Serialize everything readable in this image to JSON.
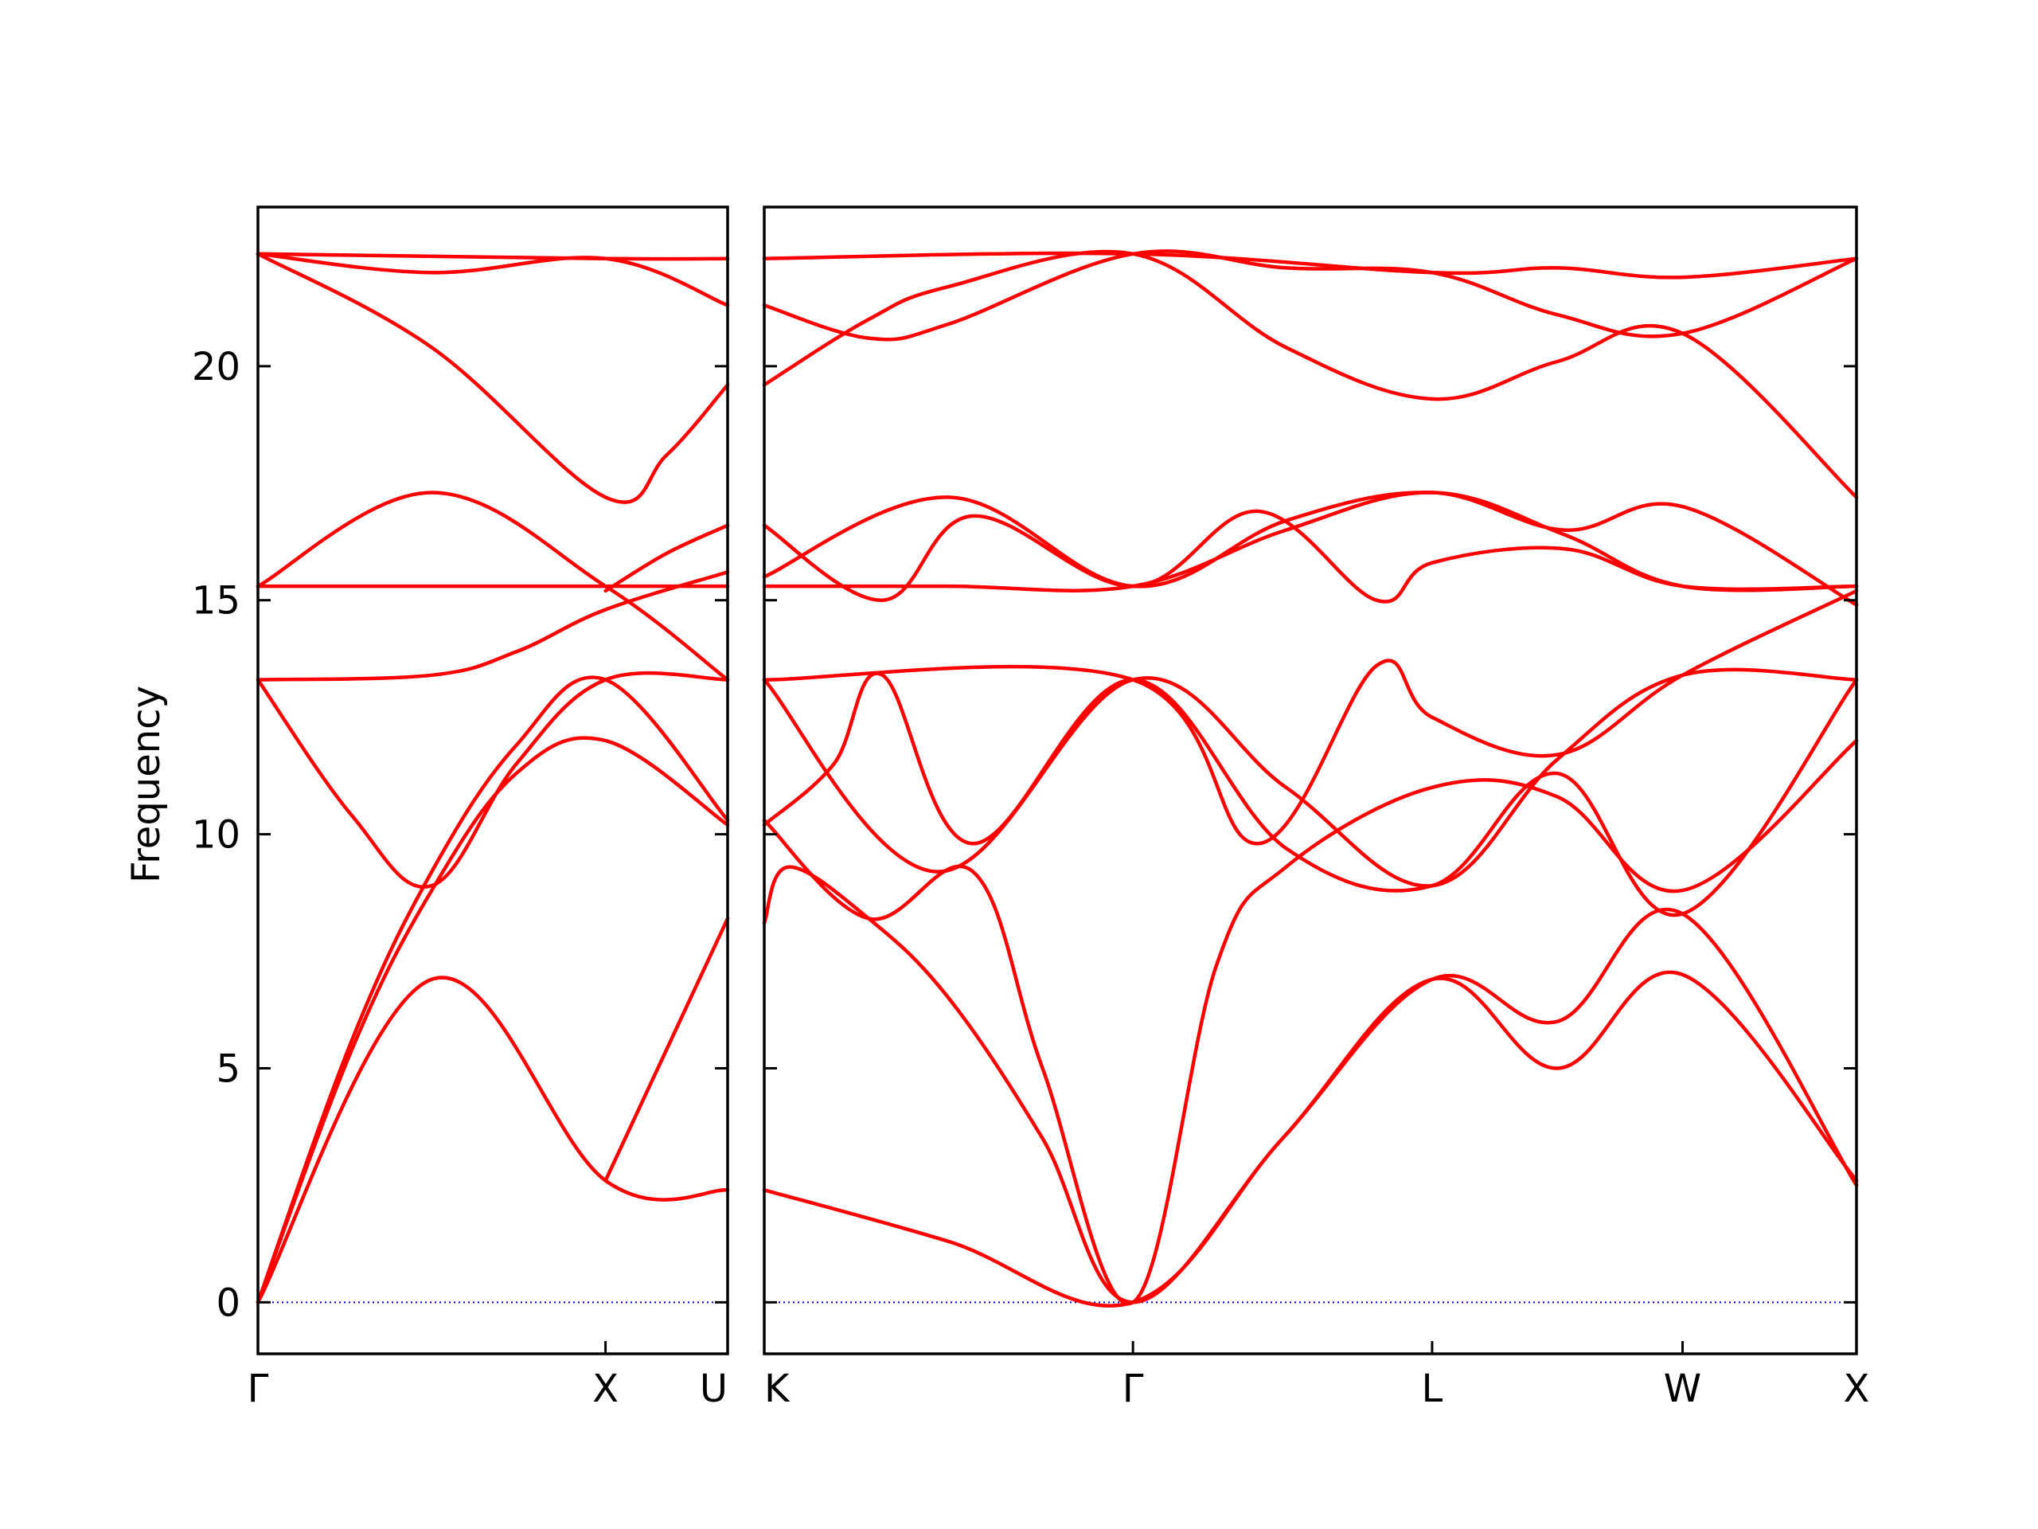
{
  "chart_data": {
    "type": "line",
    "ylabel": "Frequency",
    "ylim": [
      -1.1,
      23.4
    ],
    "yticks": [
      0,
      5,
      10,
      15,
      20
    ],
    "grid": false,
    "colors": {
      "bands": "#ff0000",
      "zero_line": "#0000cc",
      "axes": "#000000"
    },
    "panels": [
      {
        "xticks": [
          {
            "x": 0,
            "label": "Γ"
          },
          {
            "x": 0.74,
            "label": "X"
          },
          {
            "x": 1.0,
            "label": "U"
          }
        ],
        "xlim": [
          0,
          1.0
        ],
        "bands": [
          {
            "x": [
              0,
              0.37,
              0.74,
              1.0
            ],
            "y": [
              0,
              6.9,
              2.6,
              2.4
            ]
          },
          {
            "x": [
              0,
              0.2,
              0.37,
              0.55,
              0.74,
              1.0
            ],
            "y": [
              0,
              5.4,
              8.8,
              11.3,
              12.0,
              10.2
            ]
          },
          {
            "x": [
              0,
              0.2,
              0.37,
              0.55,
              0.74,
              1.0
            ],
            "y": [
              0,
              5.6,
              9.2,
              11.9,
              13.3,
              10.3
            ]
          },
          {
            "x": [
              0,
              0.2,
              0.37,
              0.55,
              0.74,
              1.0
            ],
            "y": [
              13.3,
              10.4,
              8.9,
              11.5,
              13.3,
              13.3
            ]
          },
          {
            "x": [
              0,
              0.37,
              0.74,
              1.0
            ],
            "y": [
              15.3,
              17.3,
              15.3,
              13.3
            ]
          },
          {
            "x": [
              0,
              1.0
            ],
            "y": [
              15.3,
              15.3
            ]
          },
          {
            "x": [
              0,
              0.37,
              0.55,
              0.74,
              1.0
            ],
            "y": [
              13.3,
              13.4,
              13.9,
              14.8,
              15.6
            ]
          },
          {
            "x": [
              0,
              0.37,
              0.74,
              0.87,
              1.0
            ],
            "y": [
              22.4,
              20.4,
              17.2,
              18.1,
              19.6
            ]
          },
          {
            "x": [
              0,
              0.37,
              0.74,
              1.0
            ],
            "y": [
              22.4,
              22.0,
              22.3,
              21.3
            ]
          },
          {
            "x": [
              0,
              0.74,
              1.0
            ],
            "y": [
              22.4,
              22.3,
              22.3
            ]
          },
          {
            "x": [
              0.74,
              0.87,
              1.0
            ],
            "y": [
              2.6,
              5.4,
              8.2
            ]
          },
          {
            "x": [
              0.74,
              0.87,
              1.0
            ],
            "y": [
              15.2,
              16.0,
              16.6
            ]
          }
        ]
      },
      {
        "xticks": [
          {
            "x": 0,
            "label": "K"
          },
          {
            "x": 1.06,
            "label": "Γ"
          },
          {
            "x": 1.92,
            "label": "L"
          },
          {
            "x": 2.64,
            "label": "W"
          },
          {
            "x": 3.14,
            "label": "X"
          }
        ],
        "xlim": [
          0,
          3.14
        ],
        "bands": [
          {
            "x": [
              0,
              0.53,
              1.06,
              1.49,
              1.92,
              2.28,
              2.64,
              3.14
            ],
            "y": [
              2.4,
              1.3,
              0,
              3.5,
              6.9,
              5.0,
              7.0,
              2.6
            ]
          },
          {
            "x": [
              0,
              0.07,
              0.3,
              0.53,
              0.8,
              1.06,
              1.49,
              1.92,
              2.28,
              2.64,
              3.14
            ],
            "y": [
              8.1,
              9.3,
              8.2,
              6.5,
              3.5,
              0,
              3.5,
              6.9,
              6.0,
              8.3,
              2.5
            ]
          },
          {
            "x": [
              0,
              0.3,
              0.6,
              0.8,
              1.06,
              1.3,
              1.5,
              1.92,
              2.28,
              2.64,
              3.14
            ],
            "y": [
              10.3,
              8.2,
              9.2,
              5.0,
              0,
              7.2,
              9.3,
              11.0,
              10.8,
              8.8,
              12.0
            ]
          },
          {
            "x": [
              0,
              0.2,
              0.34,
              0.6,
              1.06,
              1.5,
              1.92,
              2.28,
              2.64,
              3.14
            ],
            "y": [
              10.2,
              11.5,
              13.4,
              9.8,
              13.3,
              9.7,
              8.9,
              11.3,
              8.3,
              13.3
            ]
          },
          {
            "x": [
              0,
              0.5,
              1.06,
              1.5,
              1.92,
              2.28,
              2.64,
              3.14
            ],
            "y": [
              13.3,
              9.2,
              13.3,
              11.0,
              8.9,
              11.6,
              13.4,
              13.3
            ]
          },
          {
            "x": [
              0,
              1.06,
              1.42,
              1.76,
              1.92,
              2.28,
              2.64,
              3.14
            ],
            "y": [
              13.3,
              13.3,
              9.8,
              13.6,
              12.5,
              11.7,
              13.4,
              15.2
            ]
          },
          {
            "x": [
              0,
              0.53,
              1.06,
              1.5,
              1.92,
              2.3,
              2.64,
              3.14
            ],
            "y": [
              15.3,
              15.3,
              15.3,
              16.5,
              17.3,
              16.4,
              15.3,
              15.3
            ]
          },
          {
            "x": [
              0,
              0.53,
              1.06,
              1.5,
              1.92,
              2.3,
              2.64,
              3.14
            ],
            "y": [
              15.5,
              17.2,
              15.3,
              16.7,
              17.3,
              16.5,
              17.0,
              14.9
            ]
          },
          {
            "x": [
              0,
              0.34,
              0.6,
              1.06,
              1.42,
              1.76,
              1.92,
              2.3,
              2.64,
              3.14
            ],
            "y": [
              16.6,
              15.0,
              16.8,
              15.3,
              16.9,
              15.0,
              15.8,
              16.1,
              15.3,
              15.3
            ]
          },
          {
            "x": [
              0,
              0.3,
              0.53,
              1.06,
              1.5,
              1.92,
              2.28,
              2.64,
              3.14
            ],
            "y": [
              19.6,
              21.0,
              21.7,
              22.4,
              20.4,
              19.3,
              20.1,
              20.7,
              17.2
            ]
          },
          {
            "x": [
              0,
              0.3,
              0.53,
              1.06,
              1.5,
              1.92,
              2.28,
              2.64,
              3.14
            ],
            "y": [
              21.3,
              20.6,
              20.9,
              22.4,
              22.1,
              22.0,
              21.1,
              20.7,
              22.3
            ]
          },
          {
            "x": [
              0,
              1.06,
              1.92,
              2.28,
              2.64,
              3.14
            ],
            "y": [
              22.3,
              22.4,
              22.0,
              22.1,
              21.9,
              22.3
            ]
          }
        ]
      }
    ]
  }
}
